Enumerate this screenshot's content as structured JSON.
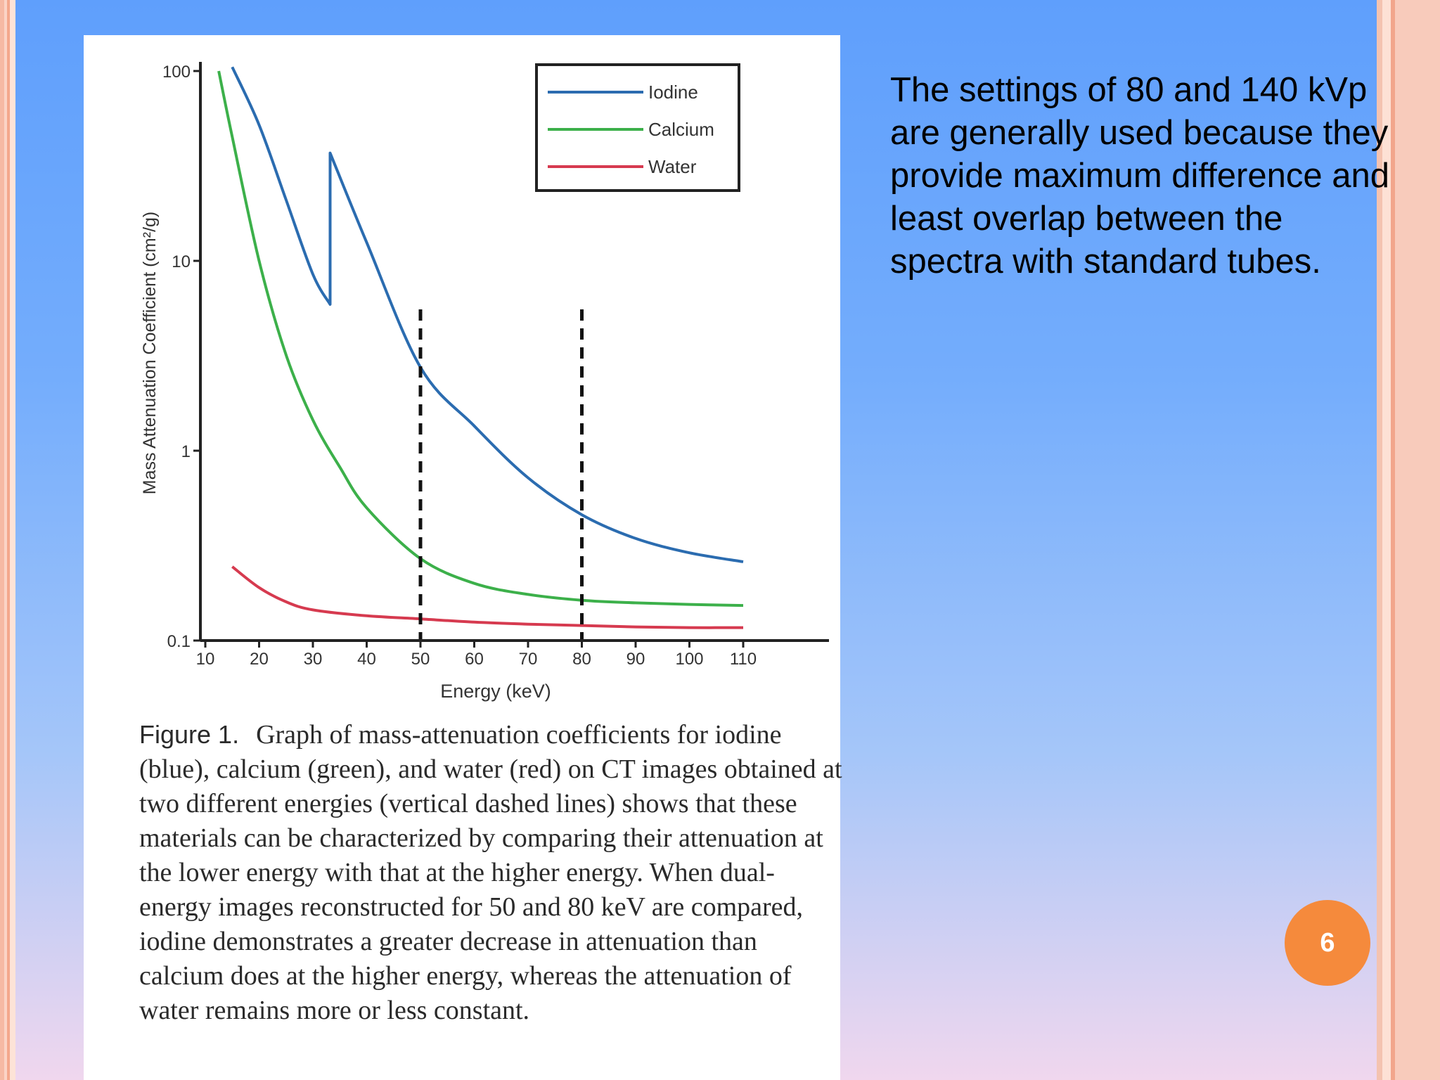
{
  "slide": {
    "body_text": "The settings of 80 and 140 kVp are generally used because they provide maximum difference and least overlap between the spectra with standard tubes.",
    "page_number": "6"
  },
  "caption": {
    "label": "Figure 1.",
    "text": "Graph of mass-attenuation coefficients for iodine (blue), calcium (green), and water (red) on CT images obtained at two different energies (vertical dashed lines) shows that these materials can be characterized by comparing their attenuation at the lower energy with that at the higher energy. When dual-energy images reconstructed for 50 and 80 keV are compared, iodine demonstrates a greater decrease in attenuation than calcium does at the higher energy, whereas the attenuation of water remains more or less constant."
  },
  "chart_data": {
    "type": "line",
    "xlabel": "Energy (keV)",
    "ylabel": "Mass Attenuation Coefficient (cm²/g)",
    "xlim": [
      10,
      110
    ],
    "ylim": [
      0.1,
      100
    ],
    "y_scale": "log",
    "x_ticks": [
      "10",
      "20",
      "30",
      "40",
      "50",
      "60",
      "70",
      "80",
      "90",
      "100",
      "110"
    ],
    "y_ticks": [
      "100",
      "10",
      "1",
      "0.1"
    ],
    "y_tick_values": [
      100,
      10,
      1,
      0.1
    ],
    "x_tick_values": [
      10,
      20,
      30,
      40,
      50,
      60,
      70,
      80,
      90,
      100,
      110
    ],
    "grid": false,
    "legend_position": "top-right",
    "reference_lines": [
      50,
      80
    ],
    "series": [
      {
        "name": "Iodine",
        "color": "#2b6cb0",
        "points": [
          [
            15,
            105
          ],
          [
            20,
            52
          ],
          [
            25,
            21
          ],
          [
            30,
            8.5
          ],
          [
            33.2,
            5.9
          ],
          [
            33.2,
            37
          ],
          [
            40,
            12.5
          ],
          [
            50,
            2.75
          ],
          [
            60,
            1.35
          ],
          [
            70,
            0.72
          ],
          [
            80,
            0.46
          ],
          [
            90,
            0.345
          ],
          [
            100,
            0.29
          ],
          [
            110,
            0.26
          ]
        ]
      },
      {
        "name": "Calcium",
        "color": "#3cb04a",
        "points": [
          [
            12.5,
            100
          ],
          [
            15,
            45
          ],
          [
            20,
            10
          ],
          [
            25,
            3.2
          ],
          [
            30,
            1.45
          ],
          [
            35,
            0.82
          ],
          [
            40,
            0.5
          ],
          [
            50,
            0.27
          ],
          [
            60,
            0.2
          ],
          [
            70,
            0.175
          ],
          [
            80,
            0.163
          ],
          [
            90,
            0.158
          ],
          [
            100,
            0.155
          ],
          [
            110,
            0.153
          ]
        ]
      },
      {
        "name": "Water",
        "color": "#d63a4f",
        "points": [
          [
            15,
            0.245
          ],
          [
            20,
            0.19
          ],
          [
            25,
            0.16
          ],
          [
            30,
            0.145
          ],
          [
            40,
            0.135
          ],
          [
            50,
            0.13
          ],
          [
            60,
            0.125
          ],
          [
            70,
            0.122
          ],
          [
            80,
            0.12
          ],
          [
            90,
            0.118
          ],
          [
            100,
            0.117
          ],
          [
            110,
            0.117
          ]
        ]
      }
    ]
  }
}
